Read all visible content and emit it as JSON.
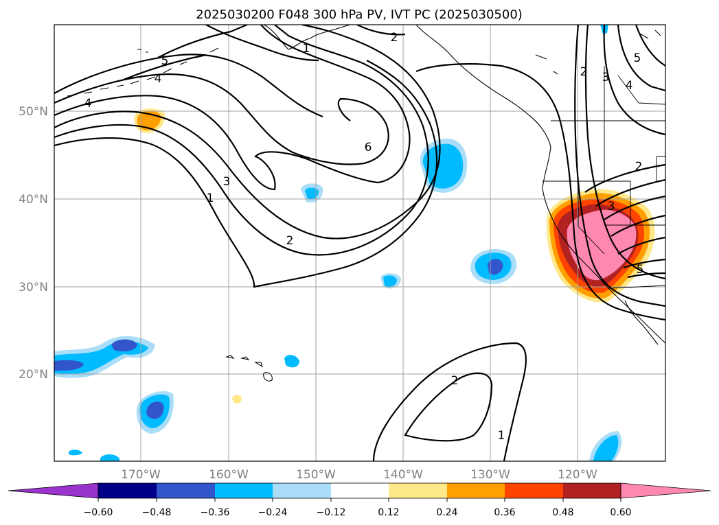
{
  "title": "2025030200 F048 300 hPa PV, IVT PC (2025030500)",
  "map": {
    "lat_labels": [
      "50°N",
      "40°N",
      "30°N",
      "20°N"
    ],
    "lon_labels": [
      "170°W",
      "160°W",
      "150°W",
      "140°W",
      "130°W",
      "120°W"
    ],
    "contour_labels": [
      "1",
      "2",
      "4",
      "5",
      "4",
      "3",
      "1",
      "6",
      "2",
      "2",
      "3",
      "2",
      "3",
      "4",
      "5",
      "5",
      "2",
      "1"
    ]
  },
  "colorbar": {
    "colors": [
      "#9933cc",
      "#000088",
      "#3355cc",
      "#00bbff",
      "#aaddf7",
      "#ffffff",
      "#ffe88a",
      "#ffa000",
      "#ff4400",
      "#b22222",
      "#ff88b0"
    ],
    "tick_labels": [
      "−0.60",
      "−0.48",
      "−0.36",
      "−0.24",
      "−0.12",
      "0.12",
      "0.24",
      "0.36",
      "0.48",
      "0.60"
    ]
  }
}
